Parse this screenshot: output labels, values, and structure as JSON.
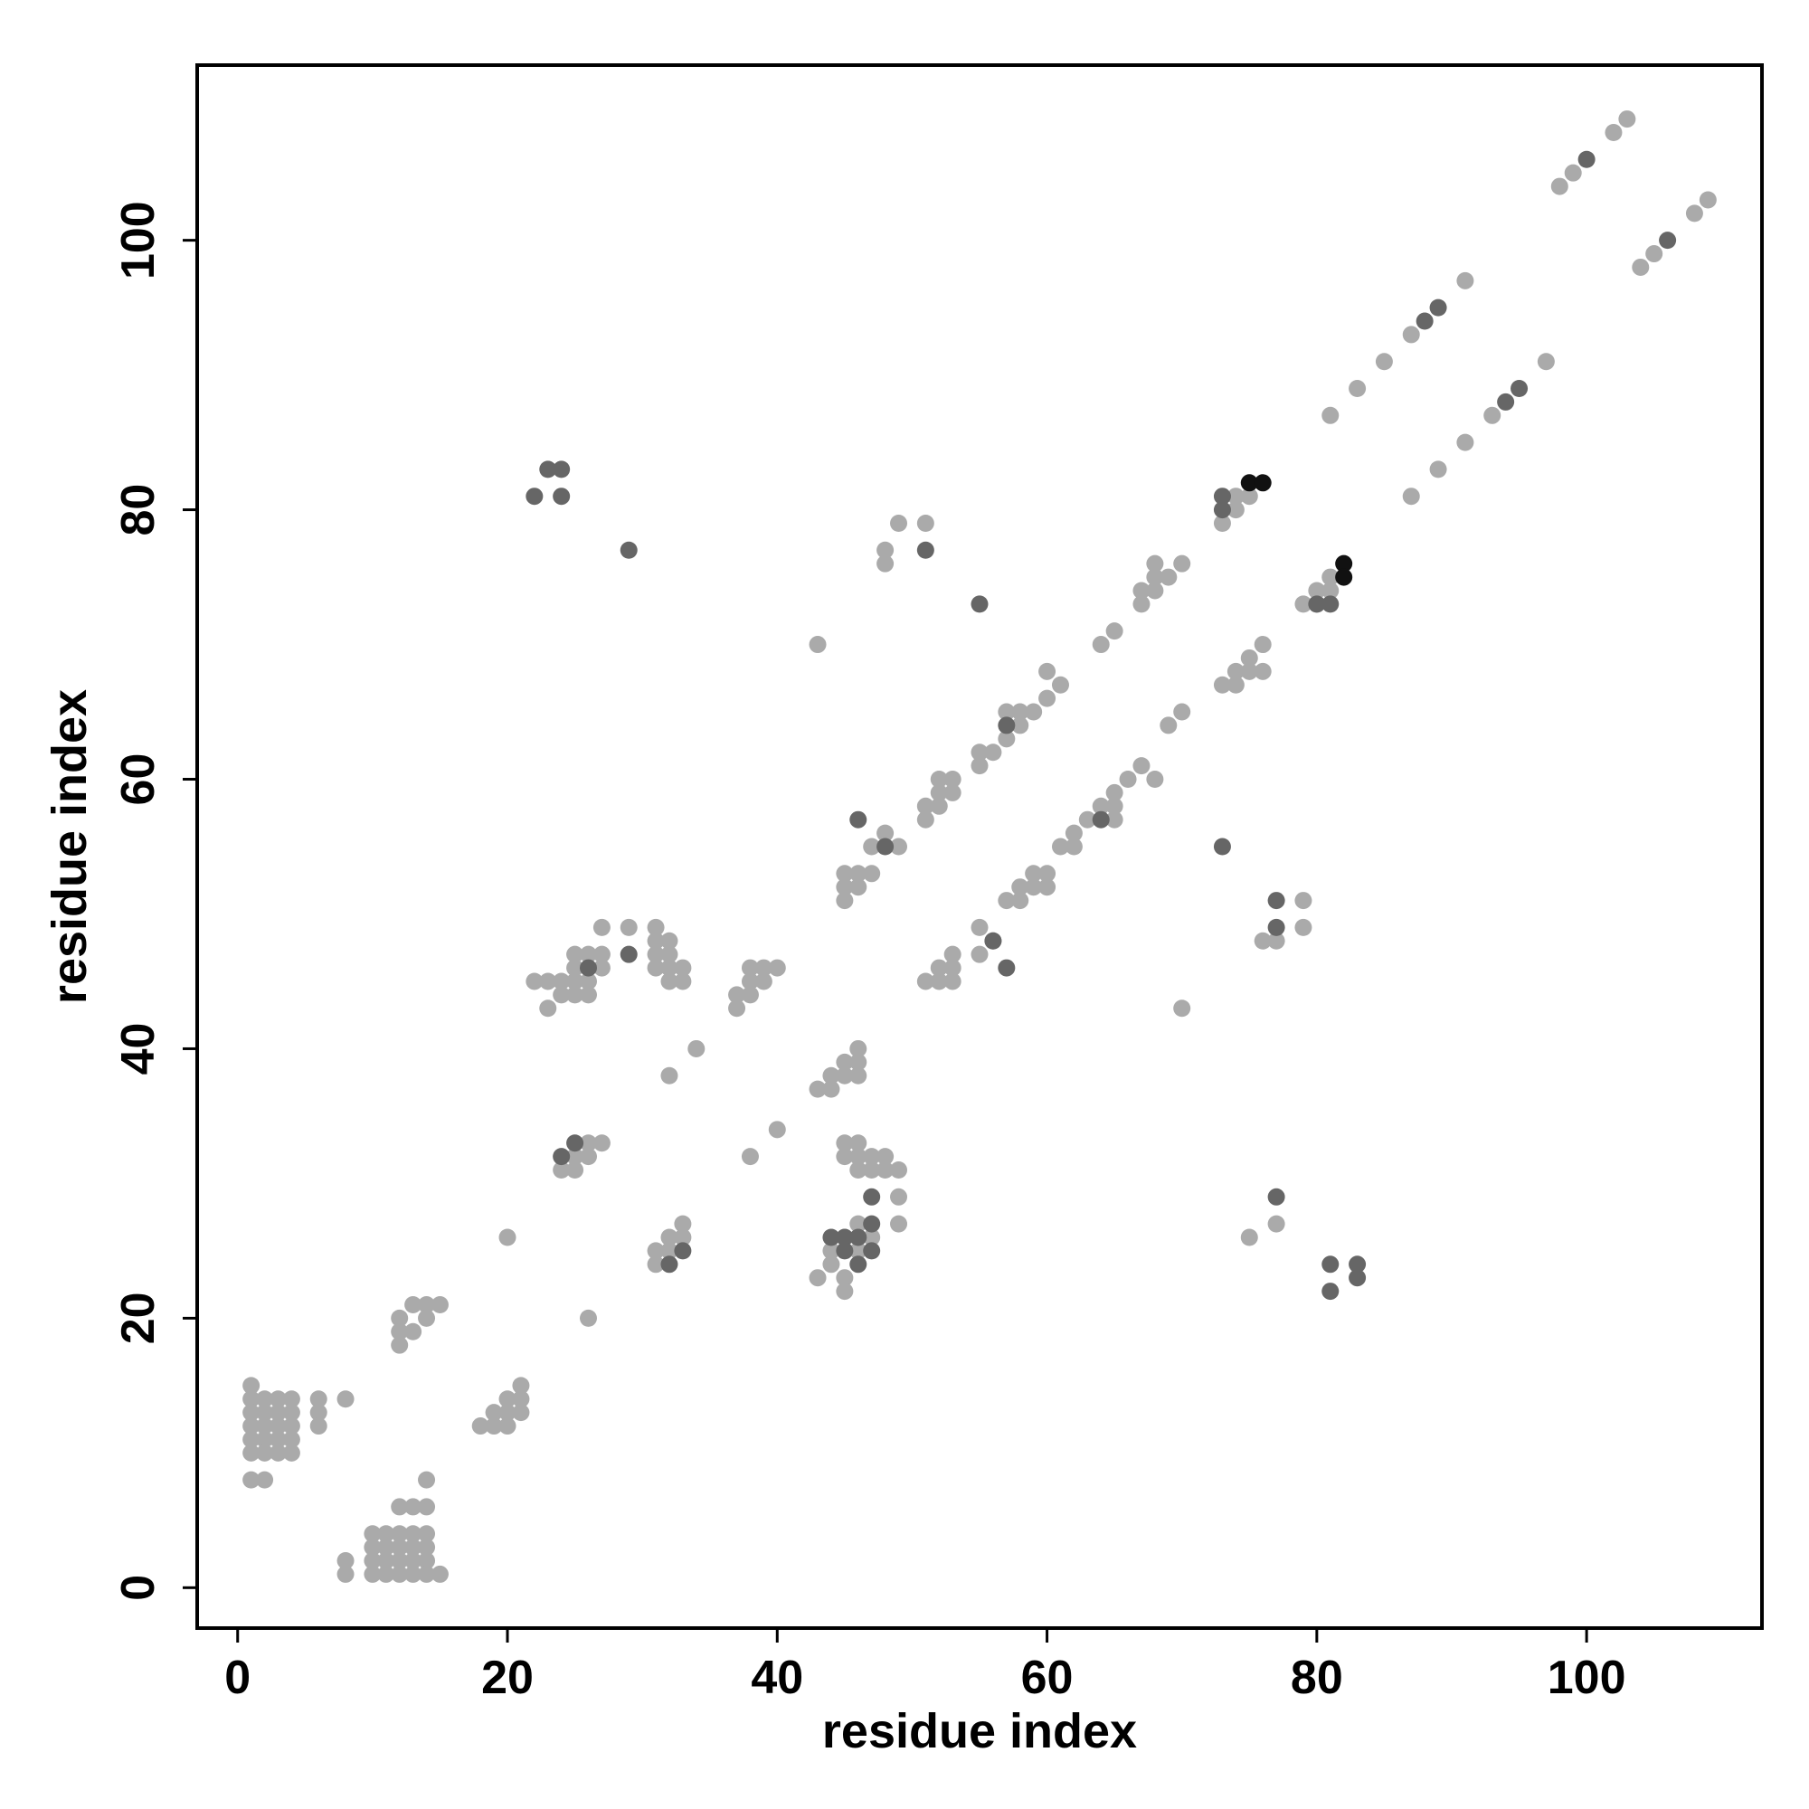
{
  "chart_data": {
    "type": "scatter",
    "title": "",
    "xlabel": "residue index",
    "ylabel": "residue index",
    "xlim": [
      -3,
      113
    ],
    "ylim": [
      -3,
      113
    ],
    "xticks": [
      0,
      20,
      40,
      60,
      80,
      100
    ],
    "yticks": [
      0,
      20,
      40,
      60,
      80,
      100
    ],
    "grid": false,
    "legend": "none",
    "colors": {
      "light": "#aaaaaa",
      "dark": "#666666",
      "black": "#111111"
    },
    "series": [
      {
        "color": "light",
        "points": [
          [
            1,
            15
          ],
          [
            1,
            14
          ],
          [
            2,
            14
          ],
          [
            3,
            14
          ],
          [
            4,
            14
          ],
          [
            1,
            13
          ],
          [
            2,
            13
          ],
          [
            3,
            13
          ],
          [
            4,
            13
          ],
          [
            1,
            12
          ],
          [
            2,
            12
          ],
          [
            3,
            12
          ],
          [
            4,
            12
          ],
          [
            1,
            11
          ],
          [
            2,
            11
          ],
          [
            3,
            11
          ],
          [
            4,
            11
          ],
          [
            1,
            10
          ],
          [
            2,
            10
          ],
          [
            3,
            10
          ],
          [
            4,
            10
          ],
          [
            1,
            8
          ],
          [
            2,
            8
          ],
          [
            6,
            14
          ],
          [
            6,
            13
          ],
          [
            6,
            12
          ],
          [
            8,
            14
          ],
          [
            8,
            2
          ],
          [
            8,
            1
          ],
          [
            10,
            4
          ],
          [
            11,
            4
          ],
          [
            12,
            4
          ],
          [
            13,
            4
          ],
          [
            14,
            4
          ],
          [
            10,
            3
          ],
          [
            11,
            3
          ],
          [
            12,
            3
          ],
          [
            13,
            3
          ],
          [
            14,
            3
          ],
          [
            10,
            2
          ],
          [
            11,
            2
          ],
          [
            12,
            2
          ],
          [
            13,
            2
          ],
          [
            14,
            2
          ],
          [
            10,
            1
          ],
          [
            11,
            1
          ],
          [
            12,
            1
          ],
          [
            13,
            1
          ],
          [
            14,
            1
          ],
          [
            15,
            1
          ],
          [
            12,
            6
          ],
          [
            13,
            6
          ],
          [
            14,
            6
          ],
          [
            14,
            8
          ],
          [
            12,
            20
          ],
          [
            13,
            21
          ],
          [
            14,
            21
          ],
          [
            15,
            21
          ],
          [
            14,
            20
          ],
          [
            12,
            19
          ],
          [
            13,
            19
          ],
          [
            12,
            18
          ],
          [
            18,
            12
          ],
          [
            19,
            13
          ],
          [
            20,
            14
          ],
          [
            21,
            15
          ],
          [
            19,
            12
          ],
          [
            20,
            12
          ],
          [
            20,
            13
          ],
          [
            21,
            14
          ],
          [
            21,
            13
          ],
          [
            20,
            26
          ],
          [
            26,
            20
          ],
          [
            22,
            45
          ],
          [
            23,
            45
          ],
          [
            24,
            45
          ],
          [
            23,
            43
          ],
          [
            24,
            44
          ],
          [
            25,
            44
          ],
          [
            26,
            44
          ],
          [
            25,
            46
          ],
          [
            26,
            45
          ],
          [
            26,
            47
          ],
          [
            27,
            47
          ],
          [
            27,
            46
          ],
          [
            27,
            49
          ],
          [
            29,
            49
          ],
          [
            25,
            47
          ],
          [
            25,
            45
          ],
          [
            31,
            49
          ],
          [
            31,
            48
          ],
          [
            32,
            48
          ],
          [
            31,
            47
          ],
          [
            32,
            47
          ],
          [
            31,
            46
          ],
          [
            32,
            46
          ],
          [
            33,
            46
          ],
          [
            32,
            45
          ],
          [
            33,
            45
          ],
          [
            24,
            31
          ],
          [
            25,
            31
          ],
          [
            25,
            32
          ],
          [
            26,
            32
          ],
          [
            26,
            33
          ],
          [
            27,
            33
          ],
          [
            32,
            38
          ],
          [
            34,
            40
          ],
          [
            38,
            32
          ],
          [
            40,
            34
          ],
          [
            37,
            43
          ],
          [
            37,
            44
          ],
          [
            38,
            44
          ],
          [
            38,
            45
          ],
          [
            38,
            46
          ],
          [
            39,
            46
          ],
          [
            39,
            45
          ],
          [
            40,
            46
          ],
          [
            31,
            25
          ],
          [
            31,
            24
          ],
          [
            32,
            25
          ],
          [
            32,
            26
          ],
          [
            33,
            26
          ],
          [
            33,
            27
          ],
          [
            43,
            37
          ],
          [
            44,
            37
          ],
          [
            44,
            38
          ],
          [
            45,
            38
          ],
          [
            45,
            39
          ],
          [
            46,
            38
          ],
          [
            46,
            39
          ],
          [
            46,
            40
          ],
          [
            45,
            33
          ],
          [
            46,
            33
          ],
          [
            45,
            32
          ],
          [
            46,
            32
          ],
          [
            46,
            31
          ],
          [
            47,
            31
          ],
          [
            47,
            32
          ],
          [
            48,
            31
          ],
          [
            48,
            32
          ],
          [
            49,
            31
          ],
          [
            49,
            29
          ],
          [
            49,
            27
          ],
          [
            46,
            27
          ],
          [
            43,
            23
          ],
          [
            44,
            24
          ],
          [
            44,
            25
          ],
          [
            45,
            23
          ],
          [
            45,
            22
          ],
          [
            45,
            26
          ],
          [
            46,
            25
          ],
          [
            47,
            26
          ],
          [
            43,
            70
          ],
          [
            45,
            51
          ],
          [
            45,
            52
          ],
          [
            45,
            53
          ],
          [
            46,
            52
          ],
          [
            46,
            53
          ],
          [
            47,
            53
          ],
          [
            47,
            55
          ],
          [
            48,
            56
          ],
          [
            49,
            55
          ],
          [
            48,
            77
          ],
          [
            48,
            76
          ],
          [
            49,
            79
          ],
          [
            51,
            79
          ],
          [
            51,
            58
          ],
          [
            51,
            57
          ],
          [
            52,
            58
          ],
          [
            52,
            59
          ],
          [
            52,
            60
          ],
          [
            53,
            60
          ],
          [
            53,
            59
          ],
          [
            55,
            61
          ],
          [
            55,
            62
          ],
          [
            56,
            62
          ],
          [
            57,
            63
          ],
          [
            57,
            65
          ],
          [
            58,
            65
          ],
          [
            58,
            64
          ],
          [
            59,
            65
          ],
          [
            60,
            66
          ],
          [
            60,
            68
          ],
          [
            61,
            67
          ],
          [
            64,
            70
          ],
          [
            65,
            71
          ],
          [
            67,
            73
          ],
          [
            67,
            74
          ],
          [
            68,
            74
          ],
          [
            68,
            75
          ],
          [
            68,
            76
          ],
          [
            69,
            75
          ],
          [
            70,
            76
          ],
          [
            73,
            79
          ],
          [
            74,
            80
          ],
          [
            74,
            81
          ],
          [
            75,
            81
          ],
          [
            79,
            73
          ],
          [
            80,
            73
          ],
          [
            80,
            74
          ],
          [
            81,
            74
          ],
          [
            81,
            75
          ],
          [
            51,
            45
          ],
          [
            52,
            45
          ],
          [
            52,
            46
          ],
          [
            53,
            45
          ],
          [
            53,
            46
          ],
          [
            53,
            47
          ],
          [
            55,
            47
          ],
          [
            55,
            49
          ],
          [
            56,
            48
          ],
          [
            57,
            51
          ],
          [
            58,
            51
          ],
          [
            58,
            52
          ],
          [
            59,
            52
          ],
          [
            59,
            53
          ],
          [
            60,
            53
          ],
          [
            60,
            52
          ],
          [
            61,
            55
          ],
          [
            62,
            55
          ],
          [
            62,
            56
          ],
          [
            63,
            57
          ],
          [
            64,
            58
          ],
          [
            65,
            58
          ],
          [
            65,
            59
          ],
          [
            65,
            57
          ],
          [
            66,
            60
          ],
          [
            67,
            61
          ],
          [
            68,
            60
          ],
          [
            69,
            64
          ],
          [
            70,
            65
          ],
          [
            73,
            67
          ],
          [
            74,
            67
          ],
          [
            74,
            68
          ],
          [
            75,
            68
          ],
          [
            75,
            69
          ],
          [
            76,
            70
          ],
          [
            76,
            68
          ],
          [
            70,
            43
          ],
          [
            76,
            48
          ],
          [
            77,
            48
          ],
          [
            79,
            49
          ],
          [
            79,
            51
          ],
          [
            75,
            26
          ],
          [
            77,
            27
          ],
          [
            81,
            87
          ],
          [
            83,
            89
          ],
          [
            85,
            91
          ],
          [
            87,
            93
          ],
          [
            91,
            97
          ],
          [
            87,
            81
          ],
          [
            89,
            83
          ],
          [
            91,
            85
          ],
          [
            93,
            87
          ],
          [
            97,
            91
          ],
          [
            98,
            104
          ],
          [
            99,
            105
          ],
          [
            102,
            108
          ],
          [
            103,
            109
          ],
          [
            104,
            98
          ],
          [
            105,
            99
          ],
          [
            108,
            102
          ],
          [
            109,
            103
          ]
        ]
      },
      {
        "color": "dark",
        "points": [
          [
            22,
            81
          ],
          [
            23,
            83
          ],
          [
            24,
            83
          ],
          [
            24,
            81
          ],
          [
            29,
            77
          ],
          [
            24,
            32
          ],
          [
            25,
            33
          ],
          [
            29,
            47
          ],
          [
            26,
            46
          ],
          [
            32,
            24
          ],
          [
            33,
            25
          ],
          [
            46,
            57
          ],
          [
            48,
            55
          ],
          [
            51,
            77
          ],
          [
            55,
            73
          ],
          [
            57,
            64
          ],
          [
            64,
            57
          ],
          [
            56,
            48
          ],
          [
            57,
            46
          ],
          [
            44,
            26
          ],
          [
            45,
            26
          ],
          [
            45,
            25
          ],
          [
            46,
            26
          ],
          [
            46,
            24
          ],
          [
            47,
            27
          ],
          [
            47,
            25
          ],
          [
            47,
            29
          ],
          [
            73,
            81
          ],
          [
            73,
            80
          ],
          [
            80,
            73
          ],
          [
            81,
            73
          ],
          [
            73,
            55
          ],
          [
            77,
            51
          ],
          [
            77,
            49
          ],
          [
            77,
            29
          ],
          [
            81,
            24
          ],
          [
            81,
            22
          ],
          [
            83,
            24
          ],
          [
            83,
            23
          ],
          [
            88,
            94
          ],
          [
            89,
            95
          ],
          [
            94,
            88
          ],
          [
            95,
            89
          ],
          [
            100,
            106
          ],
          [
            106,
            100
          ]
        ]
      },
      {
        "color": "black",
        "points": [
          [
            75,
            82
          ],
          [
            76,
            82
          ],
          [
            82,
            76
          ],
          [
            82,
            75
          ]
        ]
      }
    ]
  }
}
